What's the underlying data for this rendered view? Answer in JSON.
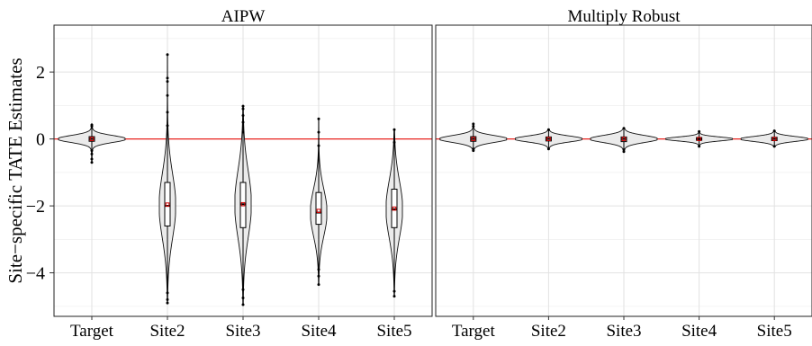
{
  "chart_data": {
    "type": "violin",
    "ylabel": "Site−specific  TATE Estimates",
    "xlabel": "",
    "ylim": [
      -5.3,
      3.4
    ],
    "yticks": [
      2,
      0,
      -2,
      -4
    ],
    "ytick_labels": [
      "2",
      "0",
      "−2",
      "−4"
    ],
    "reference_line": {
      "y": 0,
      "color": "#e8231f"
    },
    "grid": true,
    "categories": [
      "Target",
      "Site2",
      "Site3",
      "Site4",
      "Site5"
    ],
    "panels": [
      {
        "title": "AIPW",
        "groups": [
          {
            "category": "Target",
            "min": -0.7,
            "q1": -0.07,
            "median": 0.0,
            "q3": 0.07,
            "max": 0.45,
            "mean": 0.0,
            "outliers": [
              0.42,
              0.38,
              -0.35,
              -0.45,
              -0.6,
              -0.7
            ]
          },
          {
            "category": "Site2",
            "min": -4.9,
            "q1": -2.6,
            "median": -2.0,
            "q3": -1.3,
            "max": 2.5,
            "mean": -1.96,
            "outliers": [
              2.52,
              1.82,
              1.72,
              1.3,
              0.8,
              0.4,
              -4.6,
              -4.8,
              -4.9
            ]
          },
          {
            "category": "Site3",
            "min": -4.95,
            "q1": -2.65,
            "median": -1.95,
            "q3": -1.3,
            "max": 1.0,
            "mean": -1.95,
            "outliers": [
              0.98,
              0.9,
              0.7,
              0.5,
              0.2,
              -4.5,
              -4.75,
              -4.95
            ]
          },
          {
            "category": "Site4",
            "min": -4.35,
            "q1": -2.55,
            "median": -2.2,
            "q3": -1.6,
            "max": 0.6,
            "mean": -2.15,
            "outliers": [
              0.6,
              0.2,
              -0.2,
              -3.9,
              -4.1,
              -4.35
            ]
          },
          {
            "category": "Site5",
            "min": -4.7,
            "q1": -2.65,
            "median": -2.1,
            "q3": -1.5,
            "max": 0.3,
            "mean": -2.08,
            "outliers": [
              0.28,
              -0.1,
              -4.55,
              -4.7
            ]
          }
        ]
      },
      {
        "title": "Multiply Robust",
        "groups": [
          {
            "category": "Target",
            "min": -0.35,
            "q1": -0.07,
            "median": 0.0,
            "q3": 0.07,
            "max": 0.45,
            "mean": 0.0,
            "outliers": [
              0.45,
              0.38,
              -0.3,
              -0.35
            ]
          },
          {
            "category": "Site2",
            "min": -0.32,
            "q1": -0.06,
            "median": 0.0,
            "q3": 0.06,
            "max": 0.28,
            "mean": 0.0,
            "outliers": [
              0.28,
              -0.3
            ]
          },
          {
            "category": "Site3",
            "min": -0.38,
            "q1": -0.08,
            "median": 0.0,
            "q3": 0.06,
            "max": 0.32,
            "mean": 0.0,
            "outliers": [
              0.32,
              -0.32,
              -0.38
            ]
          },
          {
            "category": "Site4",
            "min": -0.22,
            "q1": -0.04,
            "median": 0.0,
            "q3": 0.04,
            "max": 0.22,
            "mean": 0.0,
            "outliers": [
              0.22,
              -0.22
            ]
          },
          {
            "category": "Site5",
            "min": -0.22,
            "q1": -0.05,
            "median": 0.0,
            "q3": 0.05,
            "max": 0.24,
            "mean": 0.0,
            "outliers": [
              0.24,
              -0.22
            ]
          }
        ]
      }
    ]
  }
}
